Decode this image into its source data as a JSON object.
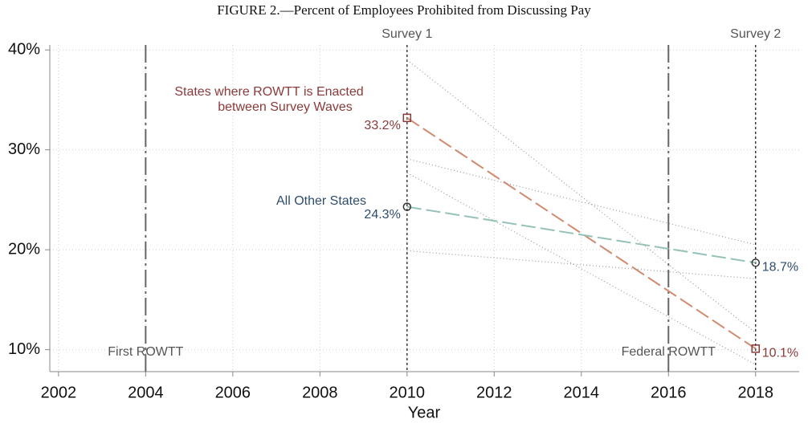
{
  "chart_data": {
    "type": "line",
    "title": "FIGURE 2.—Percent of Employees Prohibited from Discussing Pay",
    "x_label": "Year",
    "x": [
      2010,
      2018
    ],
    "xlim": [
      2001.8,
      2019
    ],
    "xticks": [
      2002,
      2004,
      2006,
      2008,
      2010,
      2012,
      2014,
      2016,
      2018
    ],
    "ylim": [
      7.8,
      40.5
    ],
    "yticks": [
      {
        "value": 10,
        "label": "10%"
      },
      {
        "value": 20,
        "label": "20%"
      },
      {
        "value": 30,
        "label": "30%"
      },
      {
        "value": 40,
        "label": "40%"
      }
    ],
    "grid": true,
    "series": [
      {
        "name": [
          "States where ROWTT is Enacted",
          "between Survey Waves"
        ],
        "color": "#d08a70",
        "label_color": "#8b3a3a",
        "marker": "square",
        "values": [
          33.2,
          10.1
        ],
        "value_labels": [
          "33.2%",
          "10.1%"
        ],
        "ci_lower": [
          27.7,
          8.5
        ],
        "ci_upper": [
          39.0,
          11.7
        ]
      },
      {
        "name": [
          "All Other States"
        ],
        "color": "#94c2b8",
        "label_color": "#2e4d6e",
        "marker": "circle",
        "values": [
          24.3,
          18.7
        ],
        "value_labels": [
          "24.3%",
          "18.7%"
        ],
        "ci_lower": [
          19.9,
          17.1
        ],
        "ci_upper": [
          29.1,
          20.5
        ]
      }
    ],
    "vlines": [
      {
        "x": 2004,
        "label": "First ROWTT",
        "style": "longdash",
        "label_pos": "bottom"
      },
      {
        "x": 2016,
        "label": "Federal ROWTT",
        "style": "longdash",
        "label_pos": "bottom"
      },
      {
        "x": 2010,
        "label": "Survey 1",
        "style": "dotted",
        "label_pos": "top"
      },
      {
        "x": 2018,
        "label": "Survey 2",
        "style": "dotted",
        "label_pos": "top"
      }
    ]
  }
}
